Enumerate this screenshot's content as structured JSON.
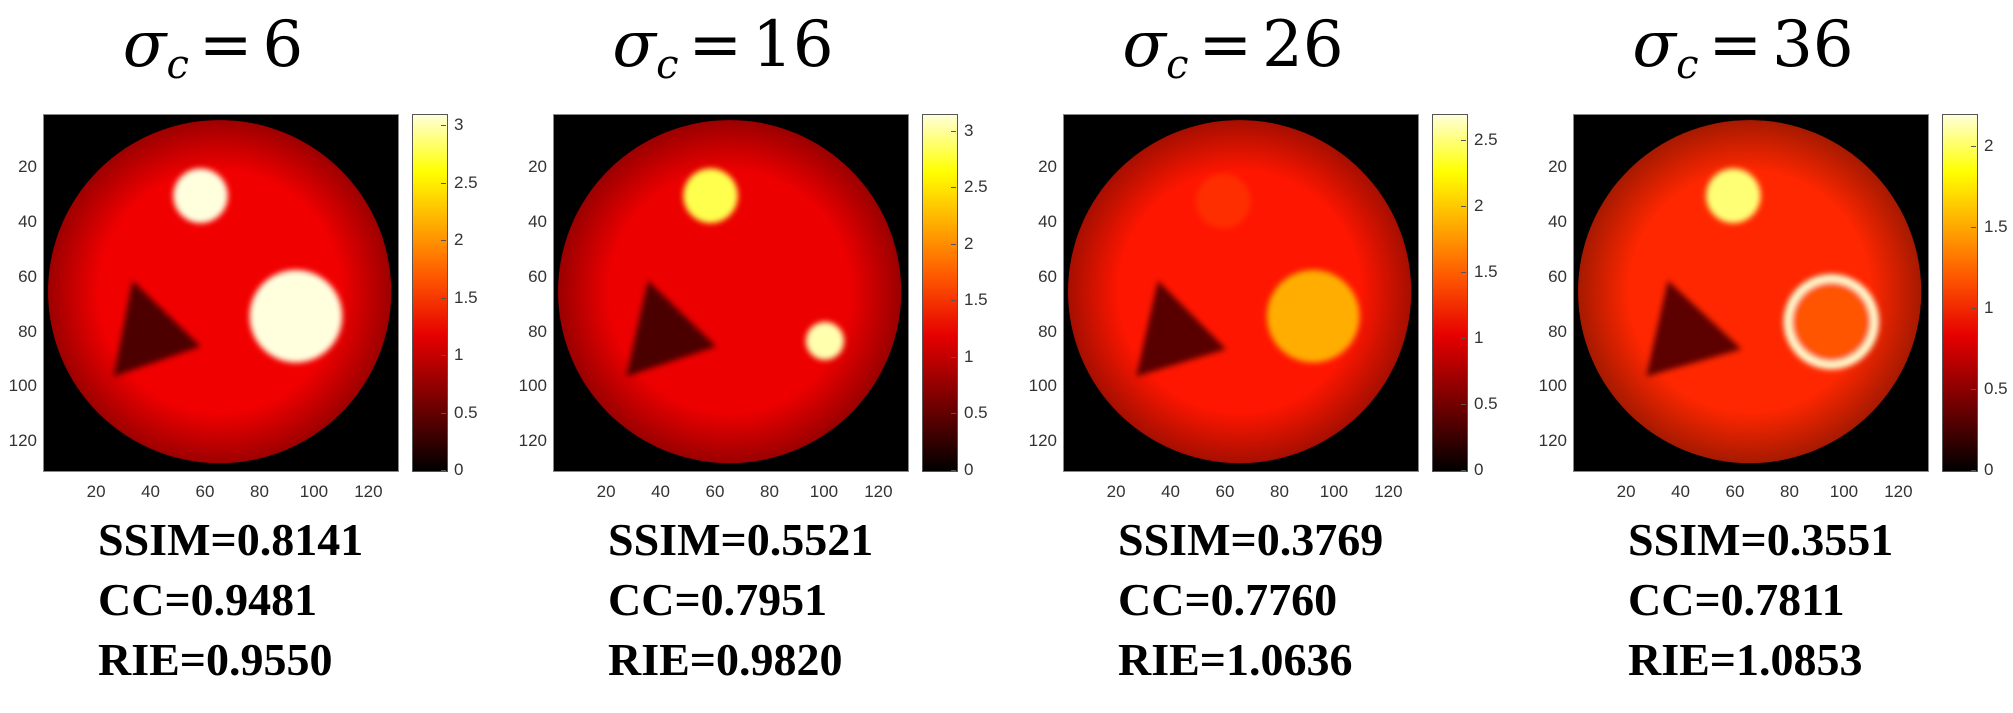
{
  "chart_data": [
    {
      "type": "heatmap",
      "title_symbol": "σ",
      "title_subscript": "c",
      "title_value": "6",
      "x_ticks": [
        "20",
        "40",
        "60",
        "80",
        "100",
        "120"
      ],
      "y_ticks": [
        "20",
        "40",
        "60",
        "80",
        "100",
        "120"
      ],
      "xlim": [
        0.5,
        130.5
      ],
      "ylim": [
        0.5,
        130.5
      ],
      "colorbar_ticks": [
        "0",
        "0.5",
        "1",
        "1.5",
        "2",
        "2.5",
        "3"
      ],
      "colorbar_range": [
        0,
        3.1
      ],
      "colormap": "hot",
      "metrics": [
        "SSIM=0.8141",
        "CC=0.9481",
        "RIE=0.9550"
      ],
      "background_level": 1.1,
      "inclusions": [
        {
          "shape": "circle",
          "cx": 58,
          "cy": 30,
          "r": 10,
          "level": 3.0
        },
        {
          "shape": "circle",
          "cx": 93,
          "cy": 74,
          "r": 17,
          "level": 3.0
        },
        {
          "shape": "triangle",
          "points": [
            [
              26,
              96
            ],
            [
              33,
              61
            ],
            [
              58,
              85
            ]
          ],
          "level": 0.35
        }
      ]
    },
    {
      "type": "heatmap",
      "title_symbol": "σ",
      "title_subscript": "c",
      "title_value": "16",
      "x_ticks": [
        "20",
        "40",
        "60",
        "80",
        "100",
        "120"
      ],
      "y_ticks": [
        "20",
        "40",
        "60",
        "80",
        "100",
        "120"
      ],
      "xlim": [
        0.5,
        130.5
      ],
      "ylim": [
        0.5,
        130.5
      ],
      "colorbar_ticks": [
        "0",
        "0.5",
        "1",
        "1.5",
        "2",
        "2.5",
        "3"
      ],
      "colorbar_range": [
        0,
        3.15
      ],
      "colormap": "hot",
      "metrics": [
        "SSIM=0.5521",
        "CC=0.7951",
        "RIE=0.9820"
      ],
      "background_level": 1.1,
      "inclusions": [
        {
          "shape": "circle",
          "cx": 58,
          "cy": 30,
          "r": 10,
          "level": 2.6
        },
        {
          "shape": "circle",
          "cx": 100,
          "cy": 83,
          "r": 7,
          "level": 2.9
        },
        {
          "shape": "triangle",
          "points": [
            [
              27,
              96
            ],
            [
              35,
              61
            ],
            [
              60,
              85
            ]
          ],
          "level": 0.35
        }
      ]
    },
    {
      "type": "heatmap",
      "title_symbol": "σ",
      "title_subscript": "c",
      "title_value": "26",
      "x_ticks": [
        "20",
        "40",
        "60",
        "80",
        "100",
        "120"
      ],
      "y_ticks": [
        "20",
        "40",
        "60",
        "80",
        "100",
        "120"
      ],
      "xlim": [
        0.5,
        130.5
      ],
      "ylim": [
        0.5,
        130.5
      ],
      "colorbar_ticks": [
        "0",
        "0.5",
        "1",
        "1.5",
        "2",
        "2.5"
      ],
      "colorbar_range": [
        0,
        2.7
      ],
      "colormap": "hot",
      "metrics": [
        "SSIM=0.3769",
        "CC=0.7760",
        "RIE=1.0636"
      ],
      "background_level": 1.1,
      "inclusions": [
        {
          "shape": "circle",
          "cx": 59,
          "cy": 32,
          "r": 10,
          "level": 1.2
        },
        {
          "shape": "circle",
          "cx": 92,
          "cy": 74,
          "r": 17,
          "level": 1.7
        },
        {
          "shape": "triangle",
          "points": [
            [
              27,
              96
            ],
            [
              35,
              61
            ],
            [
              60,
              86
            ]
          ],
          "level": 0.35
        }
      ]
    },
    {
      "type": "heatmap",
      "title_symbol": "σ",
      "title_subscript": "c",
      "title_value": "36",
      "x_ticks": [
        "20",
        "40",
        "60",
        "80",
        "100",
        "120"
      ],
      "y_ticks": [
        "20",
        "40",
        "60",
        "80",
        "100",
        "120"
      ],
      "xlim": [
        0.5,
        130.5
      ],
      "ylim": [
        0.5,
        130.5
      ],
      "colorbar_ticks": [
        "0",
        "0.5",
        "1",
        "1.5",
        "2"
      ],
      "colorbar_range": [
        0,
        2.2
      ],
      "colormap": "hot",
      "metrics": [
        "SSIM=0.3551",
        "CC=0.7811",
        "RIE=1.0853"
      ],
      "background_level": 0.95,
      "inclusions": [
        {
          "shape": "circle",
          "cx": 59,
          "cy": 30,
          "r": 10,
          "level": 1.9
        },
        {
          "shape": "ring",
          "cx": 95,
          "cy": 76,
          "r": 16,
          "level": 2.1,
          "inner_level": 1.1
        },
        {
          "shape": "triangle",
          "points": [
            [
              27,
              96
            ],
            [
              35,
              61
            ],
            [
              62,
              86
            ]
          ],
          "level": 0.3
        }
      ]
    }
  ]
}
